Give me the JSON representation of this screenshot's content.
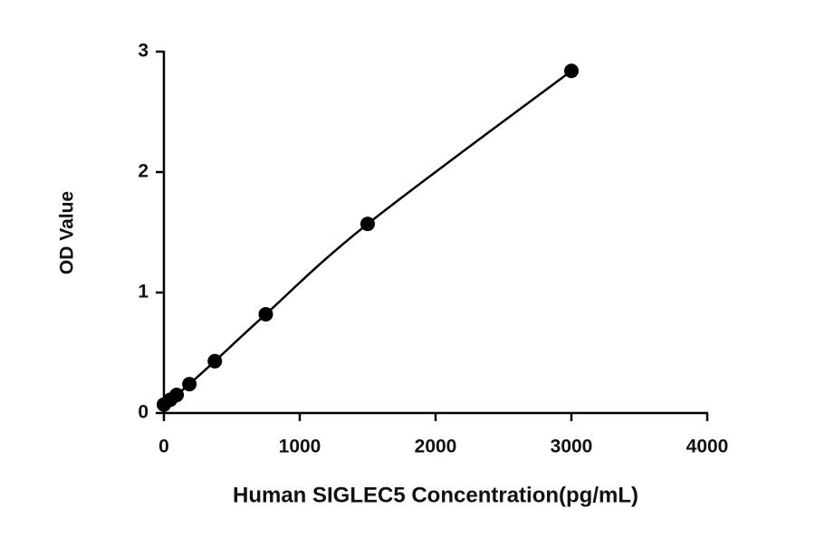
{
  "chart_data": {
    "type": "scatter",
    "x_label": "Human SIGLEC5 Concentration(pg/mL)",
    "y_label": "OD Value",
    "x": [
      0,
      46.875,
      93.75,
      187.5,
      375,
      750,
      1500,
      3000
    ],
    "series": [
      {
        "color": "#000000",
        "values": [
          0.07,
          0.11,
          0.15,
          0.24,
          0.43,
          0.82,
          1.57,
          2.84
        ]
      }
    ],
    "xlim": [
      0,
      4000
    ],
    "xticks": [
      0,
      1000,
      2000,
      3000,
      4000
    ],
    "ylim": [
      0,
      3
    ],
    "yticks": [
      0,
      1,
      2,
      3
    ],
    "fit_curve": true
  }
}
